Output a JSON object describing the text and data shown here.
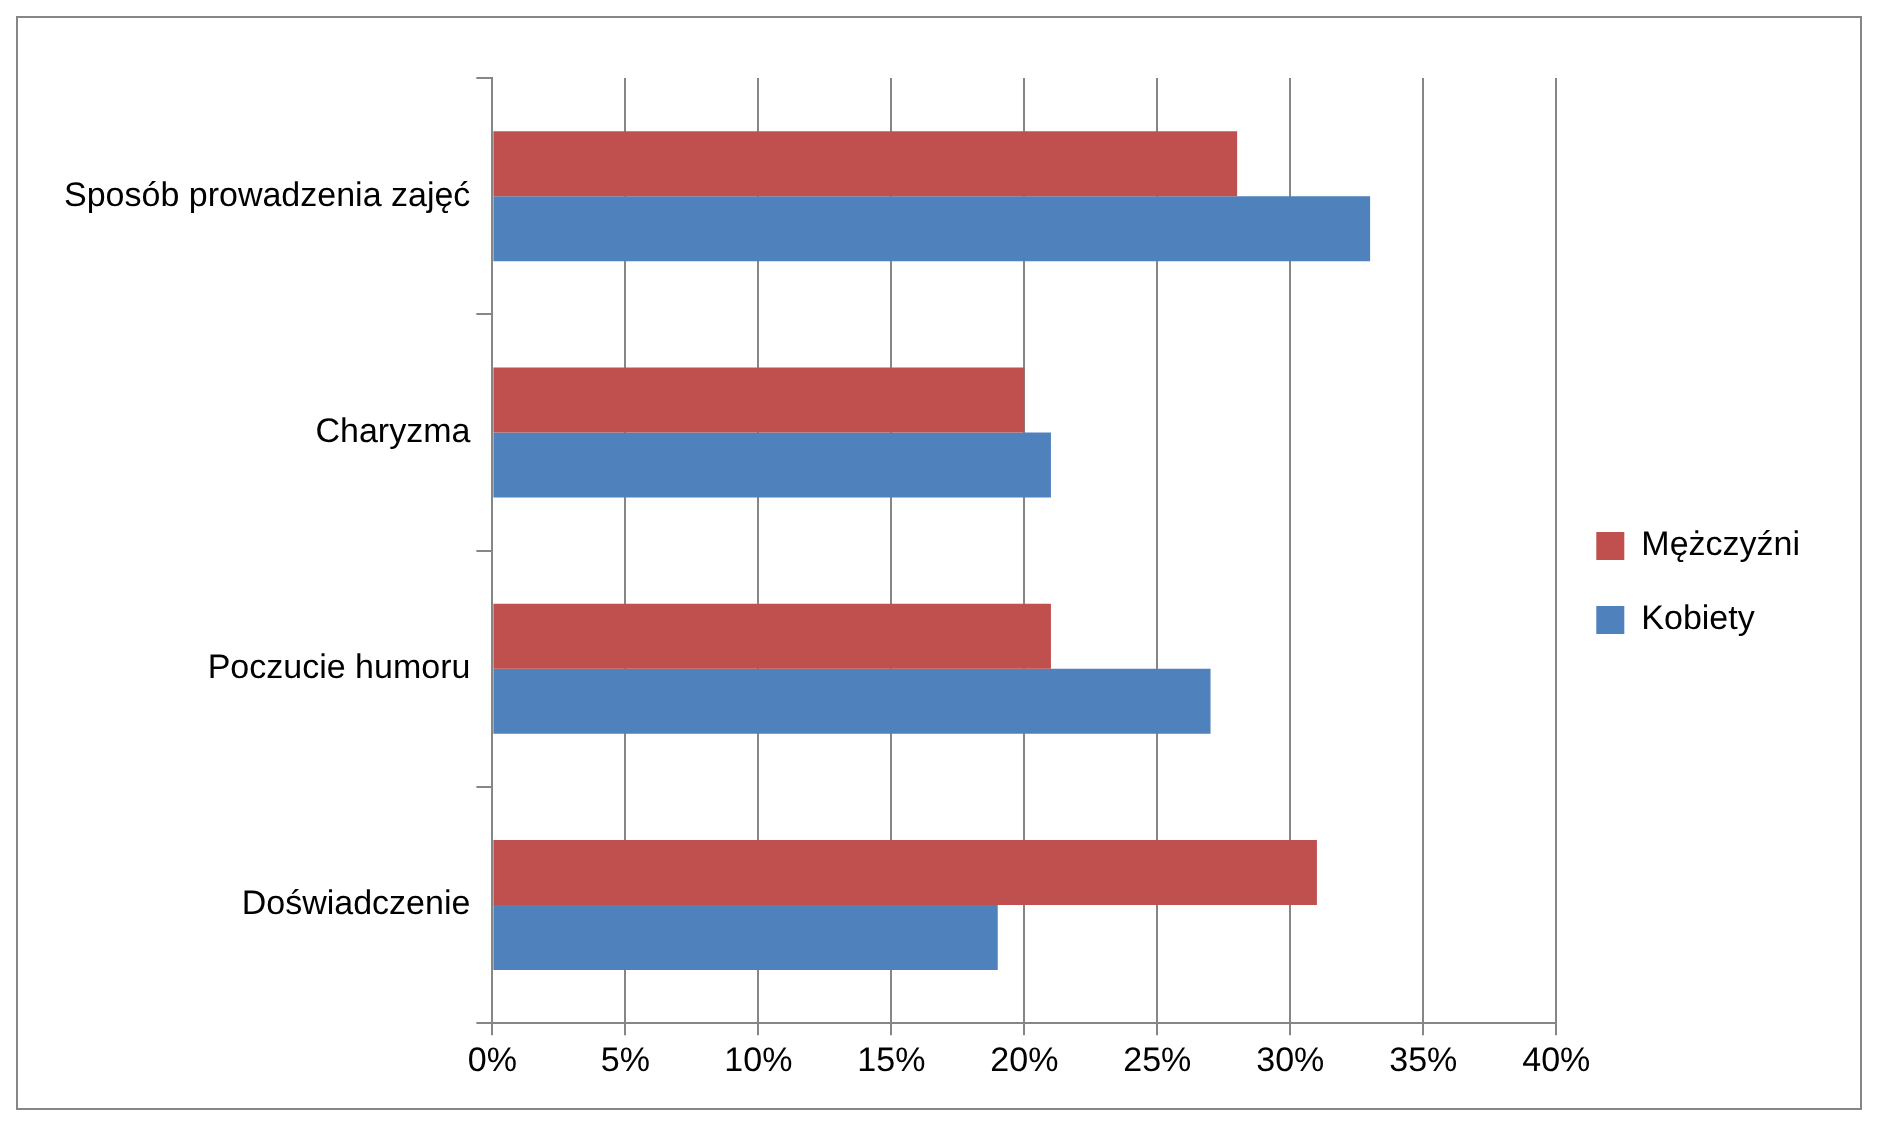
{
  "chart_data": {
    "type": "bar",
    "orientation": "horizontal",
    "categories": [
      "Sposób prowadzenia zajęć",
      "Charyzma",
      "Poczucie humoru",
      "Doświadczenie"
    ],
    "series": [
      {
        "name": "Mężczyźni",
        "color": "#c0504d",
        "values": [
          28,
          20,
          21,
          31
        ]
      },
      {
        "name": "Kobiety",
        "color": "#4f81bd",
        "values": [
          33,
          21,
          27,
          19
        ]
      }
    ],
    "xlim": [
      0,
      40
    ],
    "xticks": [
      {
        "value": 0,
        "label": "0%"
      },
      {
        "value": 5,
        "label": "5%"
      },
      {
        "value": 10,
        "label": "10%"
      },
      {
        "value": 15,
        "label": "15%"
      },
      {
        "value": 20,
        "label": "20%"
      },
      {
        "value": 25,
        "label": "25%"
      },
      {
        "value": 30,
        "label": "30%"
      },
      {
        "value": 35,
        "label": "35%"
      },
      {
        "value": 40,
        "label": "40%"
      }
    ],
    "grid": "x",
    "legend": "right"
  }
}
